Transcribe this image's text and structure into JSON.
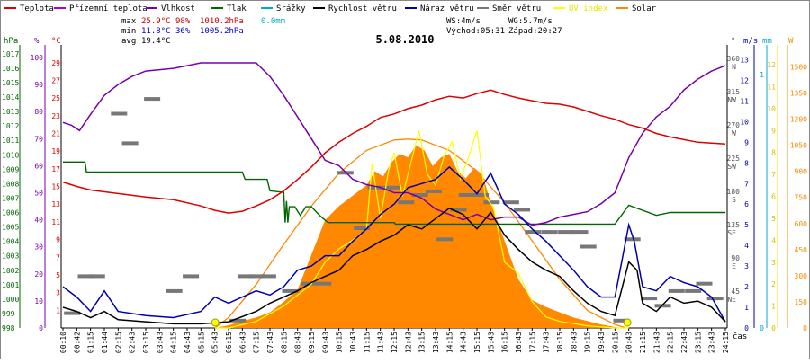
{
  "chart_data": {
    "type": "line",
    "title": "5.08.2010",
    "legend": [
      {
        "name": "Teplota",
        "color": "#dd0000"
      },
      {
        "name": "Přízemní teplota",
        "color": "#aa00cc"
      },
      {
        "name": "Vlhkost",
        "color": "#7700aa"
      },
      {
        "name": "Tlak",
        "color": "#006600"
      },
      {
        "name": "Srážky",
        "color": "#00aacc"
      },
      {
        "name": "Rychlost větru",
        "color": "#000000"
      },
      {
        "name": "Náraz větru",
        "color": "#0000aa"
      },
      {
        "name": "Směr větru",
        "color": "#777777"
      },
      {
        "name": "UV index",
        "color": "#ffff00"
      },
      {
        "name": "Solar",
        "color": "#ff8800"
      }
    ],
    "stats": {
      "max_label": "max",
      "max_temp": "25.9°C",
      "max_hum": "98%",
      "max_press": "1010.2hPa",
      "rain": "0.0mm",
      "min_label": "min",
      "min_temp": "11.8°C",
      "min_hum": "36%",
      "min_press": "1005.2hPa",
      "avg_label": "avg",
      "avg_temp": "19.4°C"
    },
    "info": {
      "ws": "WS:4m/s",
      "wg": "WG:5.7m/s",
      "sunrise": "Východ:05:31",
      "sunset": "Západ:20:27"
    },
    "axes": {
      "hpa_label": "hPa",
      "pct_label": "%",
      "c_label": "°C",
      "deg_label": "°",
      "ms_label": "m/s",
      "mm_label": "mm",
      "w_label": "W",
      "x_label": "čas",
      "hpa_ticks": [
        998,
        999,
        1000,
        1001,
        1002,
        1003,
        1004,
        1005,
        1006,
        1007,
        1008,
        1009,
        1010,
        1011,
        1012,
        1013,
        1014,
        1015,
        1016,
        1017
      ],
      "pct_ticks": [
        0,
        10,
        20,
        30,
        40,
        50,
        60,
        70,
        80,
        90,
        100
      ],
      "c_ticks": [
        1,
        3,
        5,
        7,
        9,
        11,
        13,
        15,
        17,
        19,
        21,
        23,
        25,
        27,
        29
      ],
      "dir_ticks": [
        {
          "deg": "360",
          "dir": "N"
        },
        {
          "deg": "315",
          "dir": "NW"
        },
        {
          "deg": "270",
          "dir": "W"
        },
        {
          "deg": "225",
          "dir": "SW"
        },
        {
          "deg": "180",
          "dir": "S"
        },
        {
          "deg": "135",
          "dir": "SE"
        },
        {
          "deg": "90",
          "dir": "E"
        },
        {
          "deg": "45",
          "dir": "NE"
        }
      ],
      "ms_ticks": [
        0,
        1,
        2,
        3,
        4,
        5,
        6,
        7,
        8,
        9,
        10,
        11,
        12,
        13
      ],
      "mm_ticks": [
        0,
        1
      ],
      "uv_ticks": [
        0,
        1,
        2,
        3,
        4,
        5,
        6,
        7,
        8,
        9,
        10,
        11,
        12
      ],
      "w_ticks": [
        0,
        150,
        300,
        450,
        600,
        750,
        900,
        1050,
        1200,
        1350,
        1500
      ],
      "x_ticks": [
        "00:10",
        "00:42",
        "01:15",
        "01:44",
        "02:15",
        "02:43",
        "03:15",
        "03:43",
        "04:15",
        "04:43",
        "05:15",
        "05:43",
        "06:15",
        "06:43",
        "07:15",
        "07:43",
        "08:15",
        "08:43",
        "09:15",
        "09:43",
        "10:15",
        "10:43",
        "11:15",
        "11:43",
        "12:15",
        "12:43",
        "13:15",
        "13:43",
        "14:15",
        "14:43",
        "15:15",
        "15:43",
        "16:15",
        "16:43",
        "17:15",
        "17:43",
        "18:15",
        "18:43",
        "19:15",
        "19:43",
        "20:15",
        "20:43",
        "21:15",
        "21:43",
        "22:15",
        "22:43",
        "23:15",
        "23:43",
        "24:15"
      ]
    },
    "series": [
      {
        "name": "Teplota",
        "unit": "°C",
        "color": "#dd0000",
        "hours": [
          0,
          0.5,
          1,
          2,
          3,
          4,
          5,
          5.5,
          6,
          6.5,
          7,
          7.5,
          8,
          8.5,
          9,
          9.5,
          10,
          10.5,
          11,
          11.5,
          12,
          12.5,
          13,
          13.5,
          14,
          14.5,
          15,
          15.5,
          16,
          16.5,
          17,
          17.5,
          18,
          18.5,
          19,
          19.5,
          20,
          20.5,
          21,
          21.5,
          22,
          22.5,
          23,
          23.5,
          24
        ],
        "values": [
          15.5,
          15.0,
          14.6,
          14.2,
          13.8,
          13.5,
          12.8,
          12.3,
          12.0,
          12.2,
          12.8,
          13.5,
          14.5,
          15.8,
          17.2,
          18.8,
          20.0,
          21.0,
          21.8,
          22.8,
          23.2,
          23.8,
          24.2,
          24.8,
          25.2,
          25.0,
          25.5,
          25.9,
          25.4,
          25.0,
          24.7,
          24.4,
          24.3,
          24.0,
          23.5,
          23.0,
          22.6,
          22.0,
          21.6,
          21.0,
          20.6,
          20.3,
          20.0,
          19.9,
          19.8
        ]
      },
      {
        "name": "Vlhkost",
        "unit": "%",
        "color": "#7700aa",
        "hours": [
          0,
          0.3,
          0.6,
          1,
          1.5,
          2,
          2.5,
          3,
          4,
          4.5,
          5,
          6,
          7,
          7.5,
          8,
          8.5,
          9,
          9.5,
          10,
          10.5,
          11,
          11.5,
          12,
          12.5,
          13,
          13.5,
          14,
          14.5,
          15,
          15.5,
          16,
          16.5,
          17,
          17.5,
          18,
          18.5,
          19,
          19.5,
          20,
          20.5,
          21,
          21.5,
          22,
          22.5,
          23,
          23.5,
          24
        ],
        "values": [
          76,
          75,
          73,
          79,
          86,
          90,
          93,
          95,
          96,
          97,
          98,
          98,
          98,
          93,
          86,
          78,
          70,
          62,
          60,
          55,
          53,
          52,
          50,
          50,
          48,
          44,
          42,
          40,
          42,
          40,
          41,
          41,
          38,
          39,
          41,
          42,
          43,
          46,
          50,
          63,
          72,
          78,
          82,
          88,
          92,
          95,
          97
        ]
      },
      {
        "name": "Tlak",
        "unit": "hPa",
        "color": "#006600",
        "hours": [
          0,
          0.8,
          0.85,
          6.5,
          6.6,
          7.4,
          7.5,
          8.0,
          8.05,
          8.1,
          8.15,
          8.2,
          8.4,
          8.6,
          8.8,
          9.0,
          9.3,
          9.6,
          10.0,
          10.3,
          10.5,
          12.0,
          12.05,
          14.5,
          15.0,
          15.5,
          16.0,
          16.5,
          17.0,
          17.5,
          18.0,
          19.0,
          19.5,
          20.0,
          20.5,
          21.5,
          22.0,
          22.5,
          24
        ],
        "values": [
          1009.5,
          1009.5,
          1008.8,
          1008.8,
          1008.3,
          1008.3,
          1007.5,
          1007.4,
          1005.3,
          1006.8,
          1005.3,
          1006.4,
          1006.4,
          1005.8,
          1006.4,
          1006.4,
          1005.8,
          1005.3,
          1005.3,
          1005.3,
          1005.3,
          1005.3,
          1005.2,
          1005.2,
          1005.2,
          1005.2,
          1005.2,
          1005.2,
          1005.2,
          1005.2,
          1005.2,
          1005.2,
          1005.2,
          1005.2,
          1006.5,
          1005.8,
          1006.0,
          1006.0,
          1006.0
        ]
      },
      {
        "name": "Rychlost větru",
        "unit": "m/s",
        "color": "#000000",
        "hours": [
          0,
          0.5,
          1,
          1.5,
          2,
          3,
          4,
          5,
          6,
          7,
          7.5,
          8,
          8.5,
          9,
          9.5,
          10,
          10.5,
          11,
          11.5,
          12,
          12.5,
          13,
          13.5,
          14,
          14.5,
          15,
          15.5,
          16,
          16.5,
          17,
          17.5,
          18,
          18.5,
          19,
          19.5,
          20,
          20.5,
          20.8,
          21,
          21.5,
          22,
          22.5,
          23,
          23.5,
          24
        ],
        "values": [
          1.0,
          0.8,
          0.5,
          0.8,
          0.4,
          0.3,
          0.2,
          0.2,
          0.3,
          0.8,
          1.2,
          1.5,
          1.8,
          2.2,
          2.5,
          2.8,
          3.5,
          3.8,
          4.2,
          4.5,
          5.0,
          4.8,
          5.3,
          5.8,
          5.5,
          4.8,
          5.6,
          4.5,
          3.8,
          3.2,
          2.8,
          2.5,
          1.8,
          1.2,
          0.8,
          0.6,
          3.2,
          2.8,
          1.2,
          0.8,
          1.5,
          1.2,
          1.3,
          1.0,
          0.3
        ]
      },
      {
        "name": "Náraz větru",
        "unit": "m/s",
        "color": "#0000aa",
        "hours": [
          0,
          0.5,
          1,
          1.5,
          2,
          3,
          4,
          5,
          5.5,
          6,
          6.5,
          7,
          7.5,
          8,
          8.5,
          9,
          9.5,
          10,
          10.5,
          11,
          11.5,
          12,
          12.5,
          13,
          13.5,
          14,
          14.5,
          15,
          15.5,
          16,
          16.5,
          17,
          17.5,
          18,
          18.5,
          19,
          19.5,
          20,
          20.5,
          20.7,
          21,
          21.5,
          22,
          22.5,
          23,
          23.5,
          24
        ],
        "values": [
          2.0,
          1.5,
          0.8,
          1.8,
          0.8,
          0.6,
          0.5,
          0.8,
          1.5,
          1.2,
          1.5,
          1.8,
          1.6,
          2.0,
          2.8,
          3.0,
          3.5,
          3.5,
          4.2,
          4.8,
          5.5,
          6.0,
          6.8,
          7.0,
          7.2,
          7.8,
          7.2,
          6.5,
          7.5,
          6.0,
          5.5,
          4.8,
          4.2,
          3.5,
          2.8,
          2.0,
          1.5,
          1.5,
          5.0,
          4.2,
          2.0,
          1.8,
          2.5,
          2.2,
          2.0,
          1.5,
          0.3
        ]
      },
      {
        "name": "UV index",
        "unit": "",
        "color": "#ffff00",
        "hours": [
          5.5,
          6,
          7,
          8,
          9,
          9.5,
          10,
          10.5,
          11,
          11.2,
          11.5,
          11.8,
          12.0,
          12.3,
          12.6,
          12.9,
          13.2,
          13.5,
          13.8,
          14.1,
          14.4,
          14.7,
          15.0,
          15.3,
          15.6,
          16,
          16.5,
          17,
          17.5,
          18,
          19,
          20,
          20.5
        ],
        "values": [
          0,
          0,
          0.3,
          1,
          2,
          3,
          3.6,
          4,
          4.5,
          7.5,
          5,
          7.2,
          8,
          6,
          7.5,
          9,
          7,
          6.5,
          7.8,
          8.5,
          6.8,
          7.8,
          9,
          6,
          5.5,
          3,
          2.5,
          1.2,
          0.5,
          0.3,
          0.1,
          0,
          0
        ]
      },
      {
        "name": "Solar",
        "unit": "W",
        "color": "#ff8800",
        "hours": [
          5.5,
          6,
          6.5,
          7,
          7.5,
          8,
          8.5,
          9,
          9.5,
          10,
          10.5,
          11,
          11.3,
          11.6,
          11.9,
          12.2,
          12.5,
          12.8,
          13.1,
          13.4,
          13.7,
          14,
          14.3,
          14.6,
          14.9,
          15.2,
          15.5,
          16,
          16.5,
          17,
          17.5,
          18,
          18.5,
          19,
          19.5,
          20,
          20.3
        ],
        "values": [
          0,
          15,
          40,
          60,
          90,
          150,
          220,
          420,
          620,
          700,
          760,
          820,
          900,
          870,
          950,
          1000,
          980,
          1050,
          1020,
          930,
          980,
          1000,
          900,
          860,
          920,
          880,
          720,
          500,
          280,
          160,
          120,
          90,
          60,
          40,
          20,
          5,
          0
        ]
      },
      {
        "name": "Solar maximum",
        "unit": "W",
        "color": "#ff8800",
        "hours": [
          5.5,
          6,
          7,
          8,
          9,
          10,
          11,
          12,
          12.5,
          13,
          14,
          15,
          16,
          17,
          18,
          19,
          20,
          20.4
        ],
        "values": [
          0,
          60,
          250,
          480,
          700,
          890,
          1020,
          1080,
          1085,
          1080,
          1020,
          900,
          720,
          500,
          280,
          100,
          20,
          0
        ]
      }
    ],
    "wind_dir": {
      "hours": [
        0.3,
        0.8,
        1.2,
        2.0,
        2.4,
        3.2,
        4.0,
        4.6,
        6.3,
        6.6,
        7.0,
        7.4,
        8.2,
        8.9,
        9.4,
        10.2,
        10.8,
        11.3,
        11.9,
        12.4,
        12.9,
        13.4,
        13.8,
        14.3,
        14.6,
        15.1,
        15.5,
        16.2,
        16.6,
        17.0,
        17.6,
        18.2,
        18.7,
        19.0,
        20.2,
        20.6,
        21.2,
        21.7,
        22.2,
        22.8,
        23.2,
        23.6
      ],
      "deg": [
        20,
        70,
        70,
        290,
        250,
        310,
        50,
        70,
        10,
        70,
        70,
        70,
        50,
        60,
        60,
        210,
        135,
        190,
        190,
        170,
        180,
        185,
        120,
        160,
        180,
        180,
        170,
        170,
        160,
        130,
        130,
        130,
        130,
        110,
        10,
        120,
        40,
        30,
        50,
        50,
        60,
        40
      ]
    },
    "sun_markers": [
      "05:31",
      "20:27"
    ]
  }
}
